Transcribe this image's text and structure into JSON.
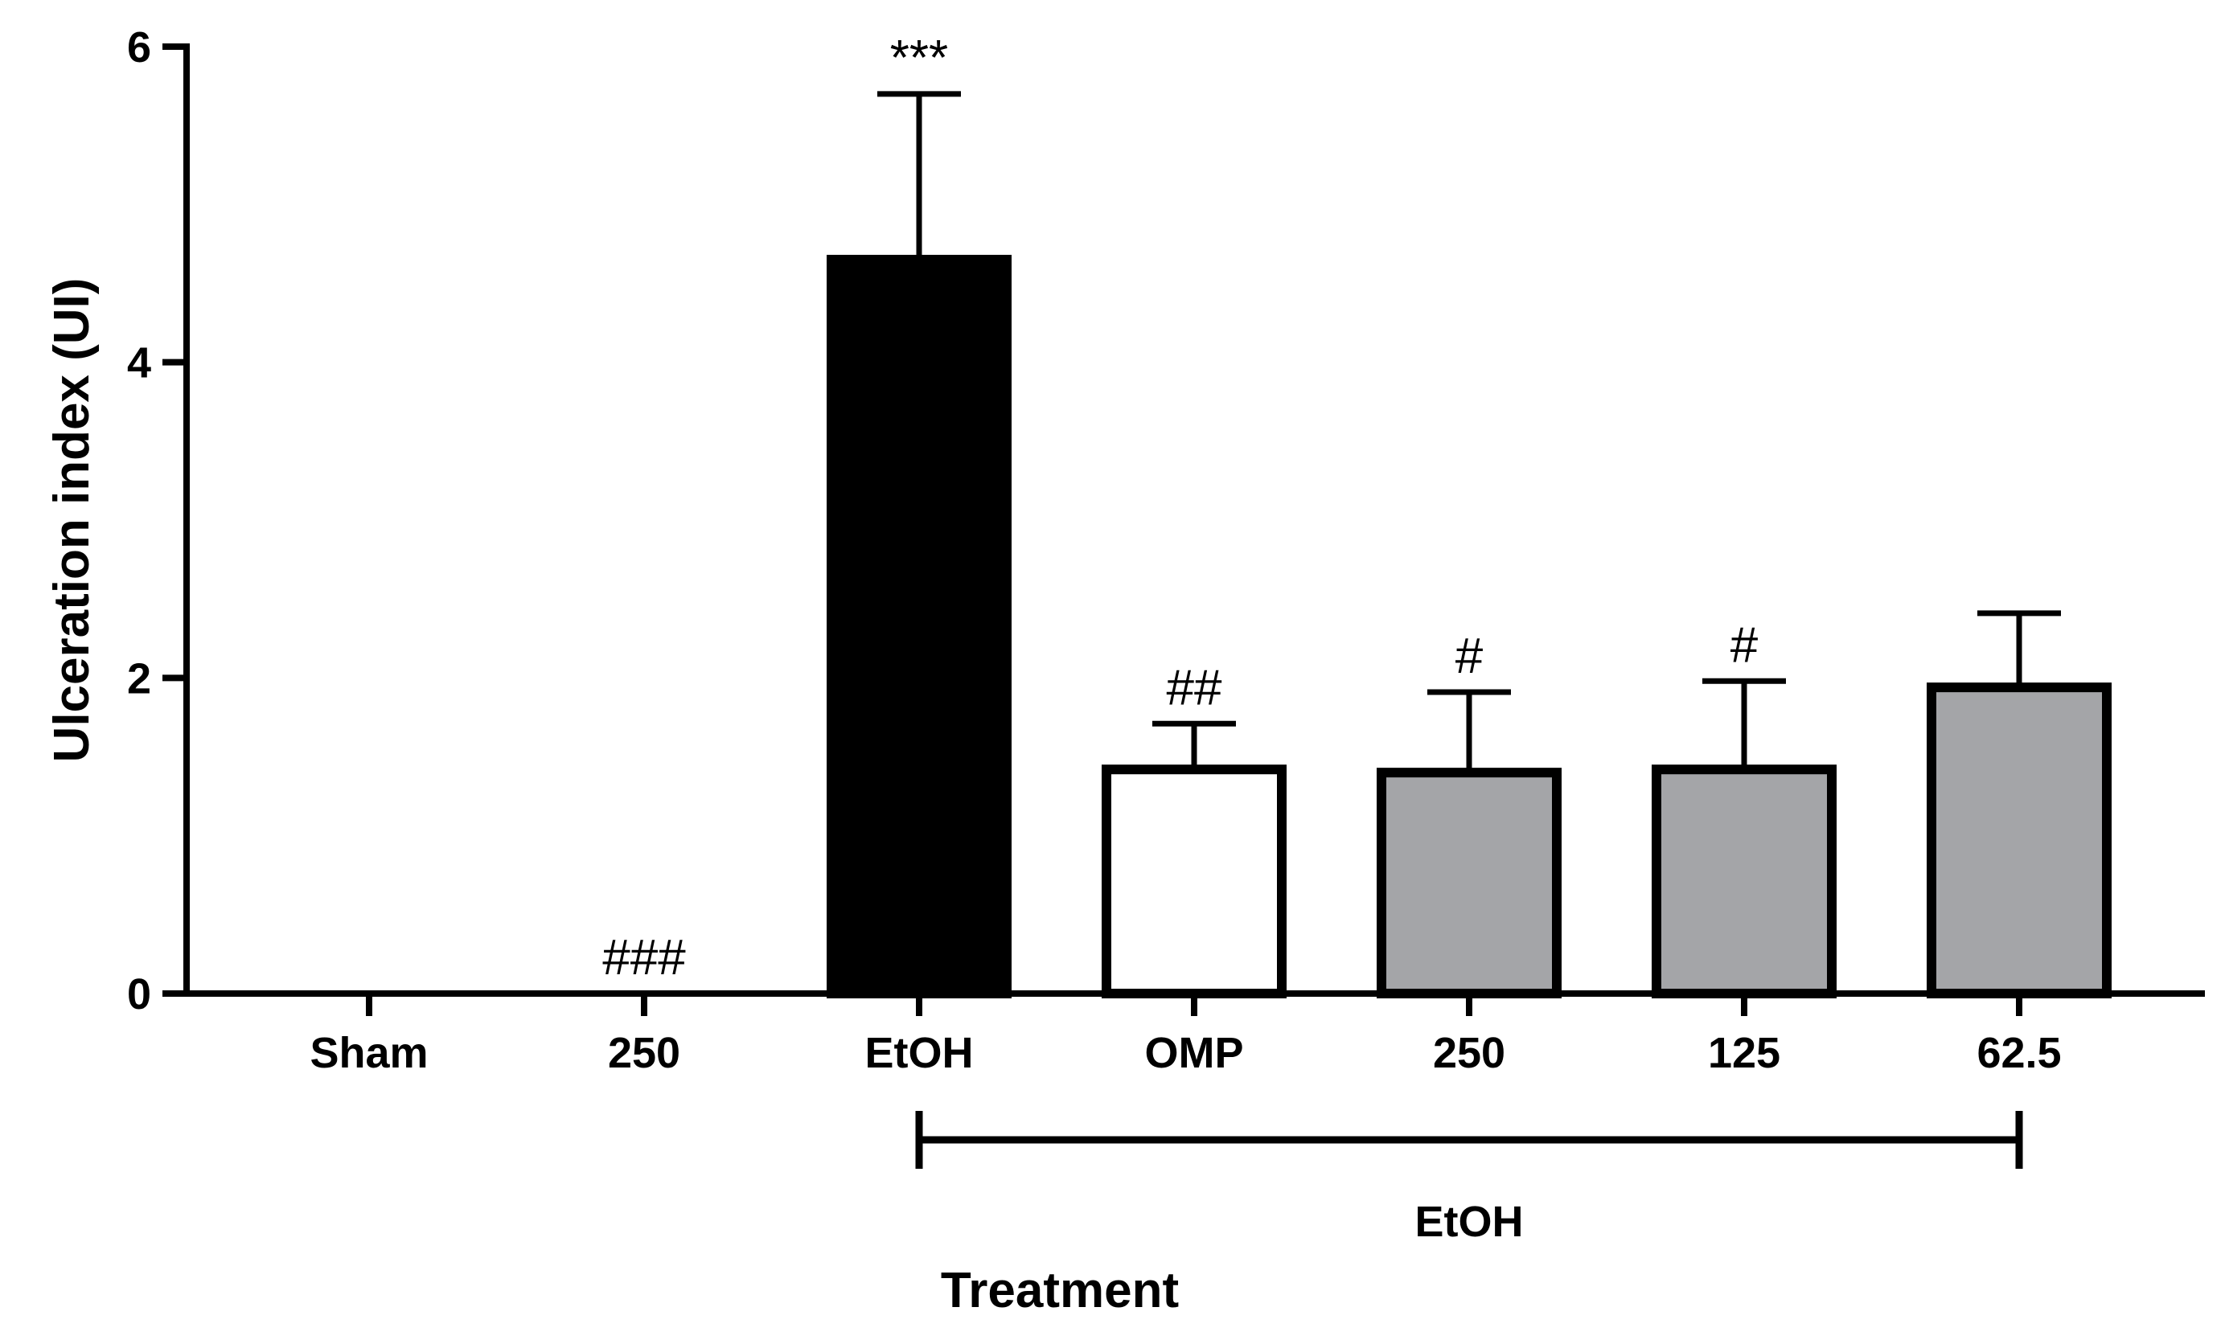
{
  "chart_data": {
    "type": "bar",
    "categories": [
      "Sham",
      "250",
      "EtOH",
      "OMP",
      "250",
      "125",
      "62.5"
    ],
    "values": [
      0,
      0,
      4.65,
      1.42,
      1.4,
      1.42,
      1.94
    ],
    "errors": [
      0,
      0,
      1.05,
      0.29,
      0.51,
      0.56,
      0.47
    ],
    "annotations": [
      "",
      "###",
      "***",
      "##",
      "#",
      "#",
      ""
    ],
    "colors": [
      "#ffffff",
      "#ffffff",
      "#000000",
      "#ffffff",
      "#a4a5a8",
      "#a4a5a8",
      "#a4a5a8"
    ],
    "title": "",
    "xlabel": "Treatment",
    "ylabel": "Ulceration index (UI)",
    "ylim": [
      0,
      6
    ],
    "yticks": [
      "0",
      "2",
      "4",
      "6"
    ],
    "group_bracket": {
      "label": "EtOH",
      "from_category_index": 2,
      "to_category_index": 6
    },
    "grid": false,
    "legend": "none"
  }
}
